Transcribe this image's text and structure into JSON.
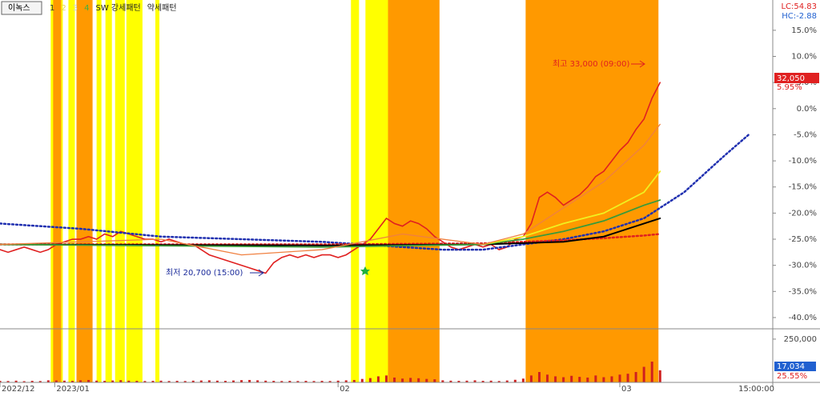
{
  "chart_data": {
    "type": "line",
    "title": "이녹스",
    "legend_items": [
      {
        "label": "1",
        "color": "#333333"
      },
      {
        "label": "2",
        "color": "#e6d94a"
      },
      {
        "label": "3",
        "color": "#cfcfcf"
      },
      {
        "label": "4",
        "color": "#3cb043"
      },
      {
        "label": "SW 강세패턴",
        "color": "#222222"
      },
      {
        "label": "약세패턴",
        "color": "#222222"
      }
    ],
    "lc_label": "LC:54.83",
    "hc_label": "HC:-2.88",
    "last_price_label": "32,050",
    "last_change_label": "5.95%",
    "high_annotation": "최고 33,000 (09:00)",
    "low_annotation": "최저 20,700 (15:00)",
    "volume_last_label": "17,034",
    "volume_pct_label": "25.55%",
    "xlim": [
      0,
      96
    ],
    "xticks": [
      {
        "value": 0,
        "label": "2022/12"
      },
      {
        "value": 6.8,
        "label": "2023/01"
      },
      {
        "value": 42,
        "label": "02"
      },
      {
        "value": 77,
        "label": "03"
      },
      {
        "value": 96,
        "label": "15:00:00"
      }
    ],
    "ylim": [
      -42,
      20.8
    ],
    "yticks": [
      {
        "value": 15,
        "label": "15.0%"
      },
      {
        "value": 10,
        "label": "10.0%"
      },
      {
        "value": 5,
        "label": "5.0%"
      },
      {
        "value": 0,
        "label": "0.0%"
      },
      {
        "value": -5,
        "label": "-5.0%"
      },
      {
        "value": -10,
        "label": "-10.0%"
      },
      {
        "value": -15,
        "label": "-15.0%"
      },
      {
        "value": -20,
        "label": "-20.0%"
      },
      {
        "value": -25,
        "label": "-25.0%"
      },
      {
        "value": -30,
        "label": "-30.0%"
      },
      {
        "value": -35,
        "label": "-35.0%"
      },
      {
        "value": -40,
        "label": "-40.0%"
      }
    ],
    "highlight_bands": [
      {
        "color": "#ffff00",
        "ranges": [
          [
            6.3,
            7.8
          ],
          [
            8.5,
            9.3
          ],
          [
            12,
            12.6
          ],
          [
            13.1,
            13.9
          ],
          [
            14.3,
            15.5
          ],
          [
            15.7,
            17.7
          ],
          [
            19.3,
            19.8
          ],
          [
            43.6,
            44.6
          ],
          [
            45.4,
            48.2
          ]
        ]
      },
      {
        "color": "#ff9900",
        "ranges": [
          [
            6.6,
            7.6
          ],
          [
            9.5,
            11.5
          ],
          [
            48.2,
            54.6
          ],
          [
            65.3,
            81.8
          ]
        ]
      }
    ],
    "series": [
      {
        "name": "price",
        "color": "#e02020",
        "dash": false,
        "width": 1.6,
        "x": [
          0,
          1,
          2,
          3,
          4,
          5,
          6,
          7,
          8,
          9,
          10,
          11,
          12,
          13,
          14,
          15,
          16,
          17,
          18,
          19,
          20,
          21,
          22,
          23,
          24,
          25,
          26,
          27,
          28,
          29,
          30,
          31,
          32,
          33,
          34,
          35,
          36,
          37,
          38,
          39,
          40,
          41,
          42,
          43,
          44,
          45,
          46,
          47,
          48,
          49,
          50,
          51,
          52,
          53,
          54,
          55,
          56,
          57,
          58,
          59,
          60,
          61,
          62,
          63,
          64,
          65,
          66,
          67,
          68,
          69,
          70,
          71,
          72,
          73,
          74,
          75,
          76,
          77,
          78,
          79,
          80,
          81,
          82
        ],
        "values": [
          -27,
          -27.5,
          -27,
          -26.5,
          -27,
          -27.5,
          -27,
          -26,
          -25.5,
          -25,
          -25,
          -24.5,
          -25,
          -24,
          -24.5,
          -23.5,
          -24,
          -24.5,
          -25,
          -25,
          -25.5,
          -25,
          -25.5,
          -26,
          -26,
          -27,
          -28,
          -28.5,
          -29,
          -29.5,
          -30,
          -30.5,
          -31,
          -31.5,
          -29.5,
          -28.5,
          -28,
          -28.5,
          -28,
          -28.5,
          -28,
          -28,
          -28.5,
          -28,
          -27,
          -26,
          -25,
          -23,
          -21,
          -22,
          -22.5,
          -21.5,
          -22,
          -23,
          -24.5,
          -25.5,
          -26.5,
          -27,
          -26.5,
          -26,
          -26.5,
          -26,
          -27,
          -26.5,
          -25,
          -24.5,
          -22,
          -17,
          -16,
          -17,
          -18.5,
          -17.5,
          -16.5,
          -15,
          -13,
          -12,
          -10,
          -8,
          -6.5,
          -4,
          -2,
          2,
          5
        ]
      },
      {
        "name": "trend",
        "color": "#2030b0",
        "dash": true,
        "width": 2.5,
        "x": [
          0,
          10,
          20,
          30,
          40,
          50,
          55,
          60,
          65,
          70,
          75,
          80,
          85,
          90,
          93
        ],
        "values": [
          -22,
          -23,
          -24.5,
          -25,
          -25.5,
          -26.5,
          -27,
          -27,
          -26,
          -25,
          -23.5,
          -21,
          -16,
          -9,
          -5
        ]
      },
      {
        "name": "ma-long",
        "color": "#e02020",
        "dash": true,
        "width": 2.5,
        "x": [
          0,
          20,
          40,
          60,
          70,
          75,
          80,
          82
        ],
        "values": [
          -26,
          -26,
          -26,
          -25.8,
          -25.2,
          -24.8,
          -24.3,
          -24
        ]
      },
      {
        "name": "ma-120",
        "color": "#000000",
        "dash": false,
        "width": 2,
        "x": [
          0,
          40,
          60,
          70,
          75,
          80,
          82
        ],
        "values": [
          -26,
          -26.2,
          -26,
          -25.5,
          -24.5,
          -22,
          -21
        ]
      },
      {
        "name": "ma-60",
        "color": "#3a9a3a",
        "dash": false,
        "width": 1.8,
        "x": [
          0,
          40,
          60,
          65,
          70,
          75,
          80,
          82
        ],
        "values": [
          -26,
          -26.5,
          -26,
          -25,
          -23.5,
          -21.5,
          -18.5,
          -17.5
        ]
      },
      {
        "name": "ma-20",
        "color": "#f0f020",
        "dash": false,
        "width": 1.8,
        "x": [
          60,
          65,
          70,
          75,
          80,
          82
        ],
        "values": [
          -26,
          -24.5,
          -22,
          -20,
          -16,
          -12
        ]
      },
      {
        "name": "ma-5",
        "color": "#f08040",
        "dash": false,
        "width": 1.3,
        "x": [
          0,
          20,
          30,
          40,
          50,
          60,
          65,
          70,
          75,
          80,
          82
        ],
        "values": [
          -26,
          -25,
          -28,
          -27,
          -24,
          -26,
          -24,
          -19,
          -14,
          -7,
          -3
        ]
      }
    ],
    "volume": {
      "color": "#d02020",
      "ylim": [
        0,
        305000
      ],
      "yticks": [
        {
          "value": 250000,
          "label": "250,000"
        }
      ],
      "values": [
        9000,
        8000,
        10000,
        7000,
        9000,
        8000,
        12000,
        11000,
        10000,
        9000,
        12000,
        14000,
        10000,
        9000,
        11000,
        13000,
        10000,
        9000,
        8000,
        9000,
        10000,
        8000,
        9000,
        8000,
        10000,
        11000,
        12000,
        10000,
        9000,
        11000,
        13000,
        14000,
        12000,
        10000,
        9000,
        8000,
        9000,
        8000,
        9000,
        8000,
        9000,
        8000,
        10000,
        12000,
        14000,
        20000,
        25000,
        35000,
        40000,
        28000,
        22000,
        26000,
        24000,
        20000,
        18000,
        12000,
        10000,
        9000,
        10000,
        12000,
        9000,
        10000,
        8000,
        11000,
        15000,
        22000,
        40000,
        60000,
        45000,
        35000,
        30000,
        38000,
        32000,
        28000,
        40000,
        30000,
        35000,
        45000,
        50000,
        60000,
        90000,
        120000,
        70000
      ]
    }
  }
}
